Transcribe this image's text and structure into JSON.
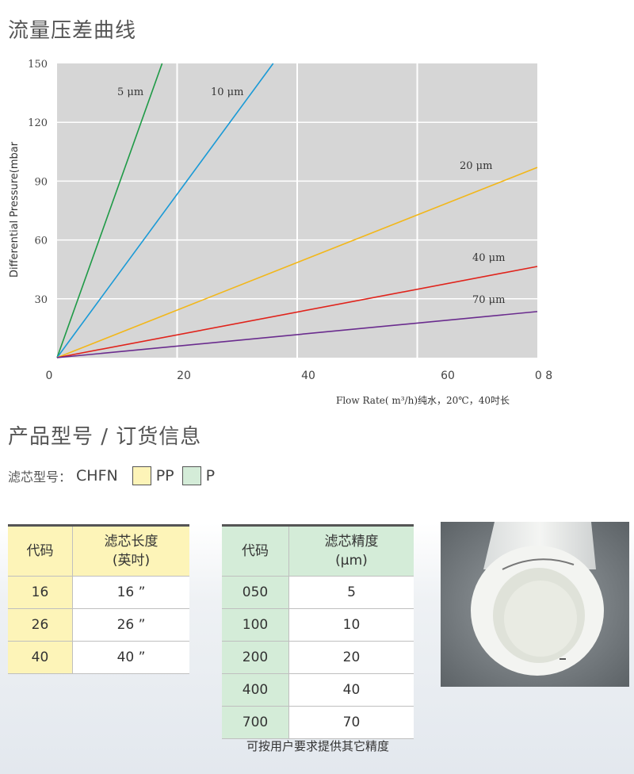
{
  "section1_title": "流量压差曲线",
  "section2_title": "产品型号 / 订货信息",
  "chart_data": {
    "type": "line",
    "ylabel": "Differential Pressure(mbar",
    "xlabel": "Flow Rate( m³/h)纯水，20℃，40吋长",
    "xlim": [
      0,
      80
    ],
    "ylim": [
      0,
      150
    ],
    "x_ticks": [
      "0",
      "20",
      "40",
      "60",
      "0 8"
    ],
    "y_ticks": [
      "30",
      "60",
      "90",
      "120",
      "150"
    ],
    "grid": true,
    "series": [
      {
        "name": "5  μm",
        "color": "#1e9a46",
        "x": [
          0,
          17.5
        ],
        "y": [
          0,
          150
        ]
      },
      {
        "name": "10  μm",
        "color": "#1a9ad6",
        "x": [
          0,
          36
        ],
        "y": [
          0,
          150
        ]
      },
      {
        "name": "20  μm",
        "color": "#f2b71a",
        "x": [
          0,
          80
        ],
        "y": [
          0,
          97
        ]
      },
      {
        "name": "40  μm",
        "color": "#e0231b",
        "x": [
          0,
          80
        ],
        "y": [
          0,
          46.5
        ]
      },
      {
        "name": "70  μm",
        "color": "#6a2c8e",
        "x": [
          0,
          80
        ],
        "y": [
          0,
          23.5
        ]
      }
    ]
  },
  "model": {
    "label": "滤芯型号：",
    "code": "CHFN",
    "option_pp": "PP",
    "option_p": "P",
    "color_pp": "#fdf4b8",
    "color_p": "#d4ecd8"
  },
  "table_length": {
    "headers": [
      "代码",
      "滤芯长度\n(英吋)"
    ],
    "rows": [
      [
        "16",
        "16 ”"
      ],
      [
        "26",
        "26 ”"
      ],
      [
        "40",
        "40 ”"
      ]
    ]
  },
  "table_grade": {
    "headers": [
      "代码",
      "滤芯精度\n(μm)"
    ],
    "rows": [
      [
        "050",
        "5"
      ],
      [
        "100",
        "10"
      ],
      [
        "200",
        "20"
      ],
      [
        "400",
        "40"
      ],
      [
        "700",
        "70"
      ]
    ]
  },
  "note": "可按用户要求提供其它精度"
}
